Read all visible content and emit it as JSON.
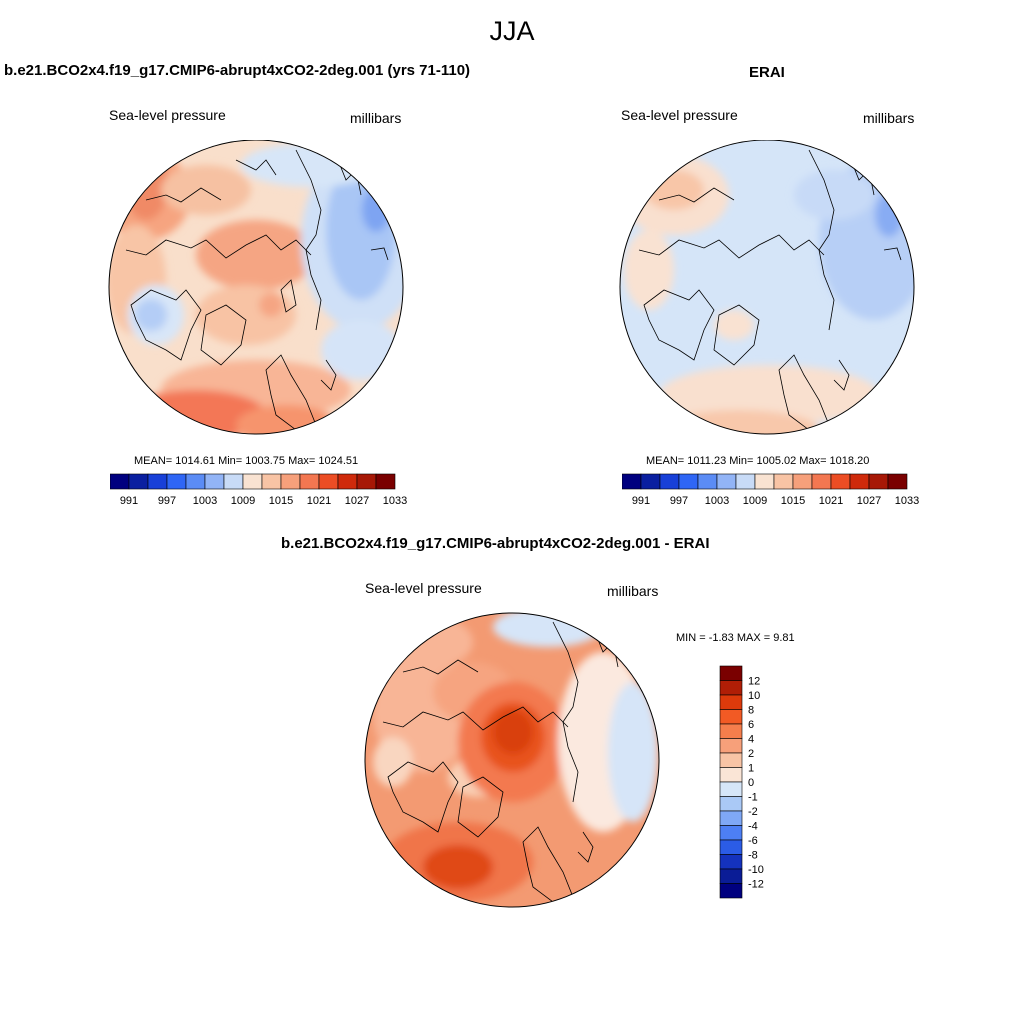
{
  "title": "JJA",
  "panels": [
    {
      "title": "b.e21.BCO2x4.f19_g17.CMIP6-abrupt4xCO2-2deg.001 (yrs 71-110)",
      "variable": "Sea-level pressure",
      "units": "millibars",
      "stats": "MEAN= 1014.61  Min= 1003.75  Max= 1024.51"
    },
    {
      "title": "ERAI",
      "variable": "Sea-level pressure",
      "units": "millibars",
      "stats": "MEAN= 1011.23  Min= 1005.02  Max= 1018.20"
    },
    {
      "title": "b.e21.BCO2x4.f19_g17.CMIP6-abrupt4xCO2-2deg.001 - ERAI",
      "variable": "Sea-level pressure",
      "units": "millibars",
      "stats": "MIN =  -1.83 MAX =   9.81"
    }
  ],
  "abs_colorbar": {
    "colors": [
      "#00007f",
      "#0a1fa0",
      "#1840d8",
      "#2f66f5",
      "#5b8cf5",
      "#92b4f6",
      "#c8dbf7",
      "#f9e3d2",
      "#f8c4a5",
      "#f6a07b",
      "#f37751",
      "#ec4d24",
      "#cf2a0b",
      "#a71806",
      "#7a0000"
    ],
    "tick_labels": [
      "991",
      "997",
      "1003",
      "1009",
      "1015",
      "1021",
      "1027",
      "1033"
    ]
  },
  "diff_colorbar": {
    "colors": [
      "#7a0000",
      "#b01e06",
      "#dd3a0b",
      "#f25a24",
      "#f57e4c",
      "#f7a07a",
      "#f8c4a5",
      "#fae5d6",
      "#d6e6f8",
      "#aac9f6",
      "#7fa8f6",
      "#4d7ff4",
      "#2b5ce6",
      "#1432bd",
      "#0a1c96",
      "#00007f"
    ],
    "tick_labels": [
      "12",
      "10",
      "8",
      "6",
      "4",
      "2",
      "1",
      "0",
      "-1",
      "-2",
      "-4",
      "-6",
      "-8",
      "-10",
      "-12"
    ]
  },
  "map_colors": {
    "base_left": "#f9dfcb",
    "base_right": "#d5e5f8",
    "base_diff": "#f39a72"
  }
}
